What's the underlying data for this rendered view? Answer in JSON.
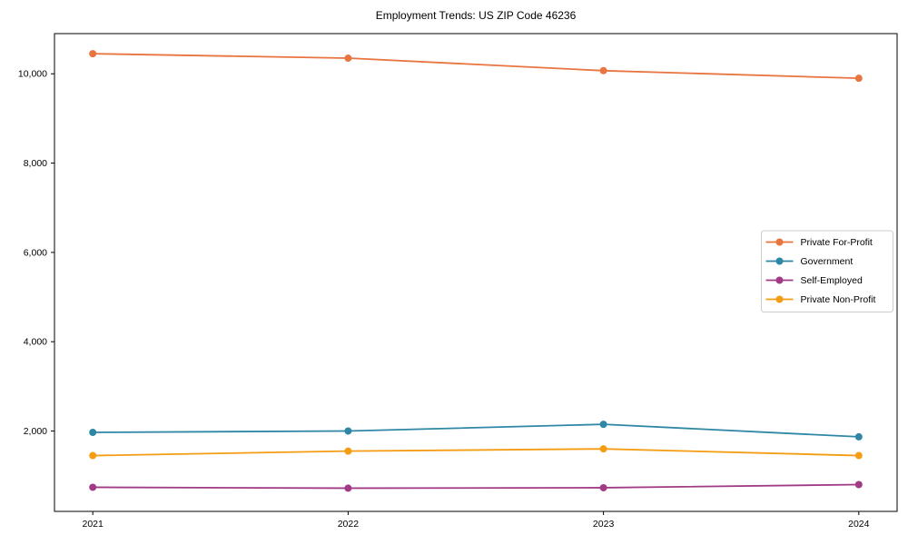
{
  "title": "Employment Trends: US ZIP Code 46236",
  "chart_data": {
    "type": "line",
    "title": "Employment Trends: US ZIP Code 46236",
    "xlabel": "",
    "ylabel": "",
    "x": [
      2021,
      2022,
      2023,
      2024
    ],
    "xtick_labels": [
      "2021",
      "2022",
      "2023",
      "2024"
    ],
    "yticks": [
      2000,
      4000,
      6000,
      8000,
      10000
    ],
    "ytick_labels": [
      "2,000",
      "4,000",
      "6,000",
      "8,000",
      "10,000"
    ],
    "ylim": [
      200,
      10900
    ],
    "grid": false,
    "marker": "circle",
    "legend_position": "center-right",
    "frame_color": "#000000",
    "legend_border_color": "#cccccc",
    "series": [
      {
        "name": "Private For-Profit",
        "color": "#e8743f",
        "values": [
          10450,
          10350,
          10070,
          9900
        ]
      },
      {
        "name": "Government",
        "color": "#2f87a5",
        "values": [
          1970,
          2000,
          2150,
          1870
        ]
      },
      {
        "name": "Self-Employed",
        "color": "#a23b86",
        "values": [
          740,
          720,
          730,
          800
        ]
      },
      {
        "name": "Private Non-Profit",
        "color": "#f49c12",
        "values": [
          1450,
          1550,
          1600,
          1450
        ]
      }
    ]
  }
}
